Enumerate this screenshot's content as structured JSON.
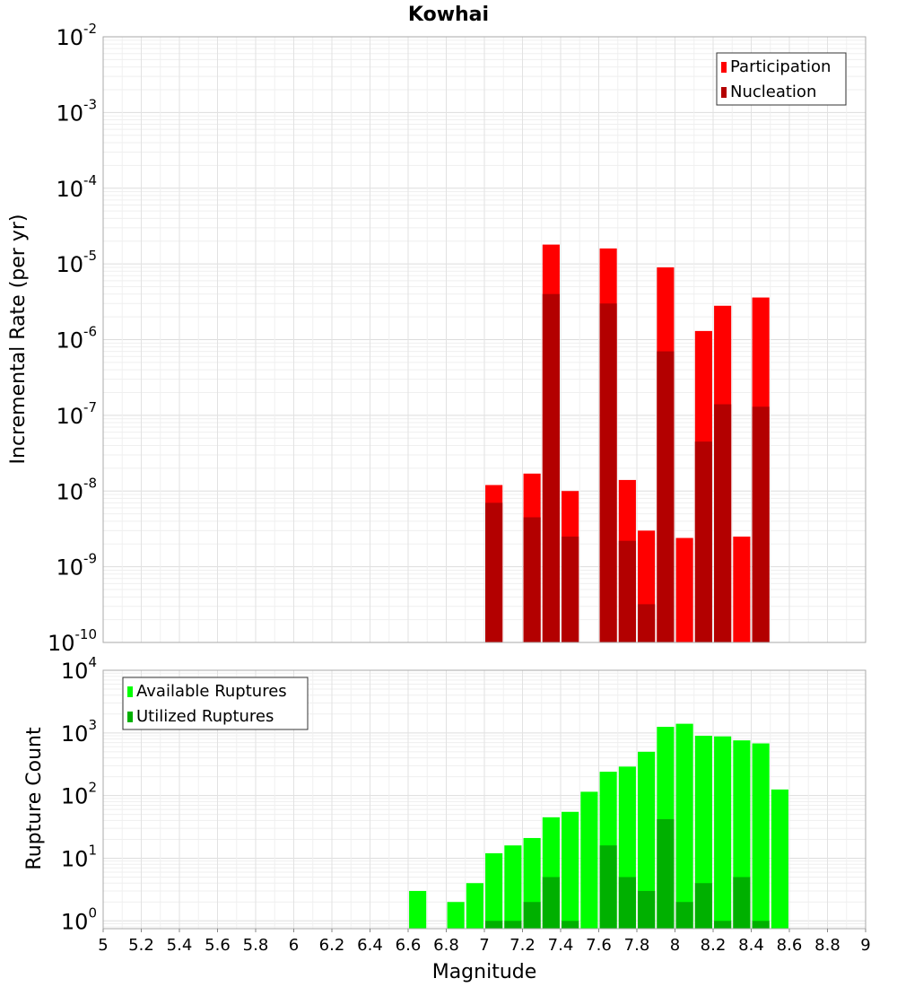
{
  "chart_data": [
    {
      "type": "bar",
      "title": "Kowhai",
      "xlabel": "",
      "ylabel": "Incremental Rate (per yr)",
      "x_scale": "linear",
      "y_scale": "log",
      "xlim": [
        5,
        9
      ],
      "ylim": [
        1e-10,
        0.01
      ],
      "y_tick_exponents": [
        -10,
        -9,
        -8,
        -7,
        -6,
        -5,
        -4,
        -3,
        -2
      ],
      "grid": true,
      "legend_position": "top-right",
      "x": [
        7.05,
        7.25,
        7.35,
        7.45,
        7.65,
        7.75,
        7.85,
        7.95,
        8.05,
        8.15,
        8.25,
        8.35,
        8.45
      ],
      "series": [
        {
          "name": "Participation",
          "color": "#ff0000",
          "values": [
            1.2e-08,
            1.7e-08,
            1.8e-05,
            1e-08,
            1.6e-05,
            1.4e-08,
            3e-09,
            9e-06,
            2.4e-09,
            1.3e-06,
            2.8e-06,
            2.5e-09,
            3.6e-06
          ]
        },
        {
          "name": "Nucleation",
          "color": "#b30000",
          "values": [
            7e-09,
            4.5e-09,
            4e-06,
            2.5e-09,
            3e-06,
            2.2e-09,
            3.2e-10,
            7e-07,
            null,
            4.5e-08,
            1.4e-07,
            null,
            1.3e-07
          ]
        }
      ]
    },
    {
      "type": "bar",
      "title": "",
      "xlabel": "Magnitude",
      "ylabel": "Rupture Count",
      "x_scale": "linear",
      "y_scale": "log",
      "xlim": [
        5,
        9
      ],
      "ylim": [
        0.75,
        10000
      ],
      "y_tick_exponents": [
        0,
        1,
        2,
        3,
        4
      ],
      "x_ticks": [
        "5",
        "5.2",
        "5.4",
        "5.6",
        "5.8",
        "6",
        "6.2",
        "6.4",
        "6.6",
        "6.8",
        "7",
        "7.2",
        "7.4",
        "7.6",
        "7.8",
        "8",
        "8.2",
        "8.4",
        "8.6",
        "8.8",
        "9"
      ],
      "grid": true,
      "legend_position": "top-left",
      "x": [
        6.65,
        6.85,
        6.95,
        7.05,
        7.15,
        7.25,
        7.35,
        7.45,
        7.55,
        7.65,
        7.75,
        7.85,
        7.95,
        8.05,
        8.15,
        8.25,
        8.35,
        8.45,
        8.55
      ],
      "series": [
        {
          "name": "Available Ruptures",
          "color": "#00ff00",
          "values": [
            3,
            2,
            4,
            12,
            16,
            21,
            45,
            55,
            115,
            240,
            290,
            500,
            1250,
            1400,
            900,
            880,
            760,
            680,
            125
          ]
        },
        {
          "name": "Utilized Ruptures",
          "color": "#00b000",
          "values": [
            null,
            null,
            null,
            1,
            1,
            2,
            5,
            1,
            null,
            16,
            5,
            3,
            42,
            2,
            4,
            1,
            5,
            1,
            null
          ]
        }
      ]
    }
  ]
}
